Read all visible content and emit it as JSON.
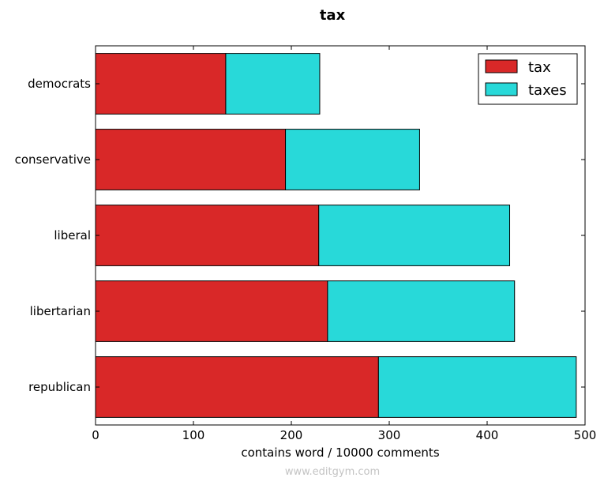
{
  "chart_data": {
    "type": "bar",
    "orientation": "horizontal",
    "stacked": true,
    "title": "tax",
    "xlabel": "contains word / 10000 comments",
    "ylabel": "",
    "xlim": [
      0,
      500
    ],
    "xticks": [
      0,
      100,
      200,
      300,
      400,
      500
    ],
    "categories": [
      "democrats",
      "conservative",
      "liberal",
      "libertarian",
      "republican"
    ],
    "series": [
      {
        "name": "tax",
        "color": "#d92828",
        "values": [
          133,
          194,
          228,
          237,
          289
        ]
      },
      {
        "name": "taxes",
        "color": "#28d9d9",
        "values": [
          96,
          137,
          195,
          191,
          202
        ]
      }
    ],
    "legend_position": "top-right",
    "grid": false
  },
  "watermark": "www.editgym.com"
}
